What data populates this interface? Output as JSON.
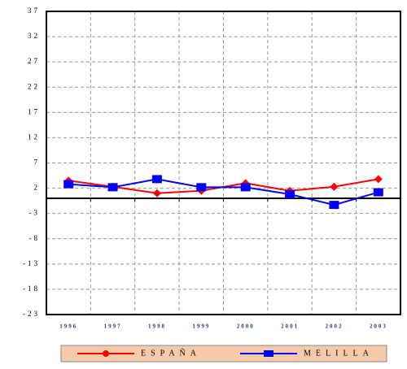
{
  "chart_data": {
    "type": "line",
    "categories": [
      "1996",
      "1997",
      "1998",
      "1999",
      "2000",
      "2001",
      "2002",
      "2003"
    ],
    "series": [
      {
        "name": "ESPAÑA",
        "color": "#ff0000",
        "values": [
          3.5,
          2.3,
          1.0,
          1.5,
          3.0,
          1.5,
          2.3,
          3.8
        ]
      },
      {
        "name": "MELILLA",
        "color": "#0000ff",
        "values": [
          2.8,
          2.2,
          3.8,
          2.2,
          2.2,
          0.8,
          -1.3,
          1.2
        ]
      }
    ],
    "ylim": [
      -23,
      37
    ],
    "yticks": [
      37,
      32,
      27,
      22,
      17,
      12,
      7,
      2,
      -3,
      -8,
      -13,
      -18,
      -23
    ],
    "grid": true
  }
}
